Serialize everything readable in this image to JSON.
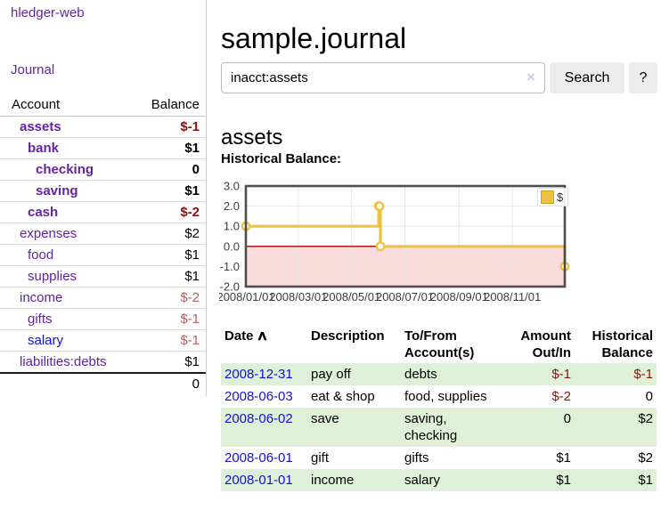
{
  "app": {
    "brand": "hledger-web"
  },
  "sidebar": {
    "journal_link": "Journal",
    "accounts": {
      "headers": {
        "account": "Account",
        "balance": "Balance"
      },
      "rows": [
        {
          "account": "assets",
          "balance": "$-1",
          "level": 1,
          "bold": true,
          "link": "purple",
          "amount_tone": "negbold"
        },
        {
          "account": "bank",
          "balance": "$1",
          "level": 2,
          "bold": true,
          "link": "purple",
          "amount_tone": "normbold"
        },
        {
          "account": "checking",
          "balance": "0",
          "level": 3,
          "bold": true,
          "link": "purple",
          "amount_tone": "normbold"
        },
        {
          "account": "saving",
          "balance": "$1",
          "level": 3,
          "bold": true,
          "link": "purple",
          "amount_tone": "normbold"
        },
        {
          "account": "cash",
          "balance": "$-2",
          "level": 2,
          "bold": true,
          "link": "purple",
          "amount_tone": "negbold"
        },
        {
          "account": "expenses",
          "balance": "$2",
          "level": 1,
          "bold": false,
          "link": "purple",
          "amount_tone": "norm"
        },
        {
          "account": "food",
          "balance": "$1",
          "level": 2,
          "bold": false,
          "link": "purple",
          "amount_tone": "norm"
        },
        {
          "account": "supplies",
          "balance": "$1",
          "level": 2,
          "bold": false,
          "link": "purple",
          "amount_tone": "norm"
        },
        {
          "account": "income",
          "balance": "$-2",
          "level": 1,
          "bold": false,
          "link": "purple",
          "amount_tone": "negfade"
        },
        {
          "account": "gifts",
          "balance": "$-1",
          "level": 2,
          "bold": false,
          "link": "purple",
          "amount_tone": "negfade"
        },
        {
          "account": "salary",
          "balance": "$-1",
          "level": 2,
          "bold": false,
          "link": "blue",
          "amount_tone": "negfade"
        },
        {
          "account": "liabilities:debts",
          "balance": "$1",
          "level": 1,
          "bold": false,
          "link": "purple",
          "amount_tone": "norm"
        }
      ],
      "total": "0"
    }
  },
  "main": {
    "title": "sample.journal",
    "search": {
      "value": "inacct:assets",
      "clear_label": "×",
      "button_label": "Search",
      "help_label": "?"
    },
    "account_heading": "assets",
    "chart_label": "Historical Balance:"
  },
  "chart_data": {
    "type": "line",
    "title": "Historical Balance",
    "step": true,
    "x_start": "2008-01-01",
    "x_end": "2008-12-31",
    "ylim": [
      -2,
      3
    ],
    "grid": true,
    "negative_region": true,
    "legend": {
      "label": "$",
      "position": "top-right"
    },
    "series": [
      {
        "name": "$",
        "color": "#edc240",
        "points": [
          [
            "2008-01-01",
            1
          ],
          [
            "2008-06-01",
            2
          ],
          [
            "2008-06-02",
            2
          ],
          [
            "2008-06-03",
            0
          ],
          [
            "2008-12-31",
            -1
          ]
        ]
      }
    ],
    "x_ticks": [
      {
        "date": "2008-01-01",
        "label": "2008/01/01"
      },
      {
        "date": "2008-03-01",
        "label": "2008/03/01"
      },
      {
        "date": "2008-05-01",
        "label": "2008/05/01"
      },
      {
        "date": "2008-07-01",
        "label": "2008/07/01"
      },
      {
        "date": "2008-09-01",
        "label": "2008/09/01"
      },
      {
        "date": "2008-11-01",
        "label": "2008/11/01"
      }
    ],
    "y_ticks": [
      {
        "value": 3,
        "label": "3.0"
      },
      {
        "value": 2,
        "label": "2.0"
      },
      {
        "value": 1,
        "label": "1.0"
      },
      {
        "value": 0,
        "label": "0.0"
      },
      {
        "value": -1,
        "label": "-1.0"
      },
      {
        "value": -2,
        "label": "-2.0"
      }
    ]
  },
  "register": {
    "headers": [
      {
        "label": "Date",
        "sort": "∧",
        "align": "left"
      },
      {
        "label": "Description",
        "align": "left"
      },
      {
        "label": "To/From Account(s)",
        "align": "left"
      },
      {
        "label": "Amount Out/In",
        "align": "right"
      },
      {
        "label": "Historical Balance",
        "align": "right"
      }
    ],
    "rows": [
      {
        "date": "2008-12-31",
        "description": "pay off",
        "accounts": "debts",
        "amount": "$-1",
        "amount_neg": true,
        "balance": "$-1",
        "balance_neg": true
      },
      {
        "date": "2008-06-03",
        "description": "eat & shop",
        "accounts": "food, supplies",
        "amount": "$-2",
        "amount_neg": true,
        "balance": "0",
        "balance_neg": false
      },
      {
        "date": "2008-06-02",
        "description": "save",
        "accounts": "saving, checking",
        "amount": "0",
        "amount_neg": false,
        "balance": "$2",
        "balance_neg": false
      },
      {
        "date": "2008-06-01",
        "description": "gift",
        "accounts": "gifts",
        "amount": "$1",
        "amount_neg": false,
        "balance": "$2",
        "balance_neg": false
      },
      {
        "date": "2008-01-01",
        "description": "income",
        "accounts": "salary",
        "amount": "$1",
        "amount_neg": false,
        "balance": "$1",
        "balance_neg": false
      }
    ]
  },
  "colors": {
    "purple_link": "#5f25a0",
    "blue_link": "#1111dd",
    "negative": "#8c100c",
    "negative_faded": "#b26262",
    "row_green": "#dff0d8",
    "gold": "#edc240",
    "pink_region": "#fadcdc",
    "zero_line": "#a80808",
    "frame": "#4e4e4e",
    "gridline": "#e6e6e6",
    "tick_text": "#3d3d3d"
  }
}
